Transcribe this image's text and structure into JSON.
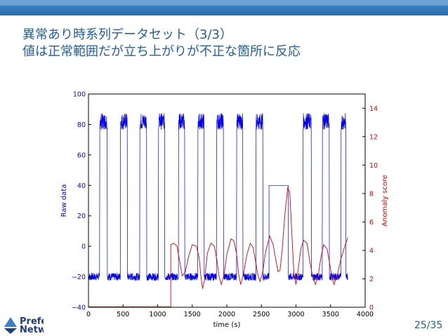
{
  "slide": {
    "title_line1": "異常あり時系列データセット（3/3）",
    "title_line2": "値は正常範囲だが立ち上がりが不正な箇所に反応",
    "page_number": "25/35",
    "logo_text_line1": "Prefe",
    "logo_text_line2": "Netw"
  },
  "colors": {
    "header_bar": "#2f77ba",
    "title_text": "#1f5fa8",
    "raw_series": "#0000ee",
    "anomaly_series": "#dd0000"
  },
  "chart_data": {
    "type": "line",
    "xlabel": "time (s)",
    "ylabel_left": "Raw data",
    "ylabel_right": "Anomaly score",
    "xlim": [
      0,
      4000
    ],
    "ylim_left": [
      -40,
      100
    ],
    "ylim_right": [
      0,
      15
    ],
    "x_ticks": [
      "0",
      "500",
      "1000",
      "1500",
      "2000",
      "2500",
      "3000",
      "3500",
      "4000"
    ],
    "y_ticks_left": [
      "−40",
      "−20",
      "0",
      "20",
      "40",
      "60",
      "80",
      "100"
    ],
    "y_ticks_right": [
      "0",
      "2",
      "4",
      "6",
      "8",
      "10",
      "12",
      "14"
    ],
    "grid": false,
    "series": [
      {
        "axis": "left",
        "high_value": 82,
        "low_value": -20,
        "pulses": [
          [
            160,
            270
          ],
          [
            460,
            560
          ],
          [
            740,
            840
          ],
          [
            1010,
            1100
          ],
          [
            1300,
            1390
          ],
          [
            1580,
            1670
          ],
          [
            1850,
            1950
          ],
          [
            2140,
            2230
          ],
          [
            2420,
            2520
          ],
          [
            2610,
            2890
          ],
          [
            3100,
            3220
          ],
          [
            3380,
            3480
          ],
          [
            3650,
            3720
          ]
        ],
        "bad_pulse": {
          "start": 2610,
          "end": 2890,
          "value": 40
        },
        "x_end": 3750
      },
      {
        "axis": "right",
        "points": [
          [
            1190,
            0
          ],
          [
            1190,
            4.4
          ],
          [
            1230,
            4.5
          ],
          [
            1280,
            4.3
          ],
          [
            1320,
            3.2
          ],
          [
            1355,
            2.2
          ],
          [
            1400,
            2.5
          ],
          [
            1450,
            3.6
          ],
          [
            1500,
            4.4
          ],
          [
            1560,
            4.3
          ],
          [
            1600,
            3.5
          ],
          [
            1625,
            2.2
          ],
          [
            1650,
            1.3
          ],
          [
            1680,
            2.0
          ],
          [
            1720,
            3.8
          ],
          [
            1770,
            4.5
          ],
          [
            1820,
            4.3
          ],
          [
            1860,
            3.2
          ],
          [
            1890,
            2.1
          ],
          [
            1920,
            1.6
          ],
          [
            1960,
            2.3
          ],
          [
            2000,
            3.7
          ],
          [
            2060,
            4.8
          ],
          [
            2100,
            4.7
          ],
          [
            2140,
            3.8
          ],
          [
            2170,
            2.4
          ],
          [
            2200,
            1.6
          ],
          [
            2240,
            2.3
          ],
          [
            2290,
            3.7
          ],
          [
            2340,
            4.5
          ],
          [
            2380,
            4.2
          ],
          [
            2420,
            3.1
          ],
          [
            2450,
            2.3
          ],
          [
            2480,
            1.8
          ],
          [
            2520,
            2.5
          ],
          [
            2560,
            3.9
          ],
          [
            2620,
            5.0
          ],
          [
            2670,
            4.4
          ],
          [
            2710,
            3.3
          ],
          [
            2740,
            2.5
          ],
          [
            2770,
            2.6
          ],
          [
            2800,
            4.0
          ],
          [
            2840,
            6.5
          ],
          [
            2880,
            8.4
          ],
          [
            2910,
            8.1
          ],
          [
            2940,
            5.2
          ],
          [
            2970,
            2.5
          ],
          [
            3000,
            1.6
          ],
          [
            3030,
            2.6
          ],
          [
            3070,
            4.1
          ],
          [
            3110,
            4.7
          ],
          [
            3160,
            4.5
          ],
          [
            3200,
            3.2
          ],
          [
            3240,
            2.2
          ],
          [
            3280,
            1.6
          ],
          [
            3320,
            2.2
          ],
          [
            3360,
            3.5
          ],
          [
            3400,
            4.4
          ],
          [
            3450,
            4.1
          ],
          [
            3490,
            3.0
          ],
          [
            3520,
            2.1
          ],
          [
            3550,
            1.6
          ],
          [
            3600,
            2.3
          ],
          [
            3650,
            3.4
          ],
          [
            3700,
            4.2
          ],
          [
            3750,
            4.9
          ]
        ]
      }
    ]
  }
}
